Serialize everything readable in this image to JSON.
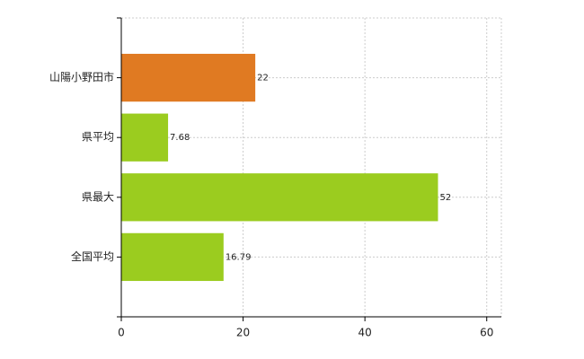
{
  "chart_data": {
    "type": "barh",
    "categories": [
      "山陽小野田市",
      "県平均",
      "県最大",
      "全国平均"
    ],
    "values": [
      22,
      7.68,
      52,
      16.79
    ],
    "colors": [
      "#e07a22",
      "#9bcc1f",
      "#9bcc1f",
      "#9bcc1f"
    ],
    "xlim": [
      0,
      62.4
    ],
    "xticks": [
      0,
      20,
      40,
      60
    ],
    "grid": true
  }
}
